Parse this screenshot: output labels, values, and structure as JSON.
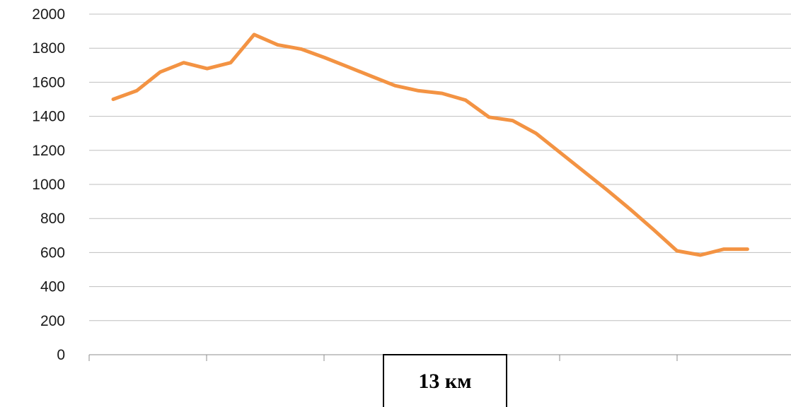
{
  "chart_data": {
    "type": "line",
    "title": "",
    "xlabel": "13 км",
    "ylabel": "",
    "ylim": [
      0,
      2000
    ],
    "yticks": [
      0,
      200,
      400,
      600,
      800,
      1000,
      1200,
      1400,
      1600,
      1800,
      2000
    ],
    "grid": true,
    "legend": "none",
    "x": [
      1,
      2,
      3,
      4,
      5,
      6,
      7,
      8,
      9,
      10,
      11,
      12,
      13,
      14,
      15,
      16,
      17,
      18,
      19,
      20,
      21,
      22,
      23,
      24,
      25,
      26,
      27,
      28
    ],
    "series": [
      {
        "values": [
          1500,
          1550,
          1660,
          1715,
          1680,
          1715,
          1880,
          1820,
          1795,
          1745,
          1690,
          1635,
          1580,
          1550,
          1535,
          1495,
          1395,
          1375,
          1300,
          1190,
          1080,
          970,
          855,
          735,
          610,
          585,
          620,
          620
        ],
        "color": "#f39343"
      }
    ]
  },
  "colors": {
    "line": "#f39343",
    "grid": "#bfbfbf",
    "axis": "#8c8c8c"
  }
}
